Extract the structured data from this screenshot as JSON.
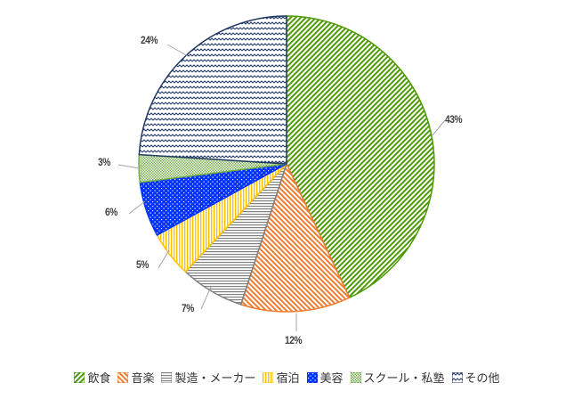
{
  "chart_data": {
    "type": "pie",
    "title": "",
    "categories": [
      "飲食",
      "音楽",
      "製造・メーカー",
      "宿泊",
      "美容",
      "スクール・私塾",
      "その他"
    ],
    "values": [
      43,
      12,
      7,
      5,
      6,
      3,
      24
    ],
    "labels": [
      "43%",
      "12%",
      "7%",
      "5%",
      "6%",
      "3%",
      "24%"
    ],
    "colors": [
      "#4e9a06",
      "#ed7d31",
      "#808080",
      "#ffc000",
      "#0033ff",
      "#70ad47",
      "#203864"
    ],
    "patterns": [
      "wide-diagonal",
      "diagonal",
      "horizontal",
      "vertical",
      "dots",
      "checker",
      "zigzag"
    ],
    "start_angle": 0,
    "direction": "clockwise",
    "legend_position": "bottom"
  },
  "legend": {
    "items": [
      {
        "label": "飲食"
      },
      {
        "label": "音楽"
      },
      {
        "label": "製造・メーカー"
      },
      {
        "label": "宿泊"
      },
      {
        "label": "美容"
      },
      {
        "label": "スクール・私塾"
      },
      {
        "label": "その他"
      }
    ]
  },
  "data_labels": [
    {
      "text": "43%"
    },
    {
      "text": "12%"
    },
    {
      "text": "7%"
    },
    {
      "text": "5%"
    },
    {
      "text": "6%"
    },
    {
      "text": "3%"
    },
    {
      "text": "24%"
    }
  ]
}
